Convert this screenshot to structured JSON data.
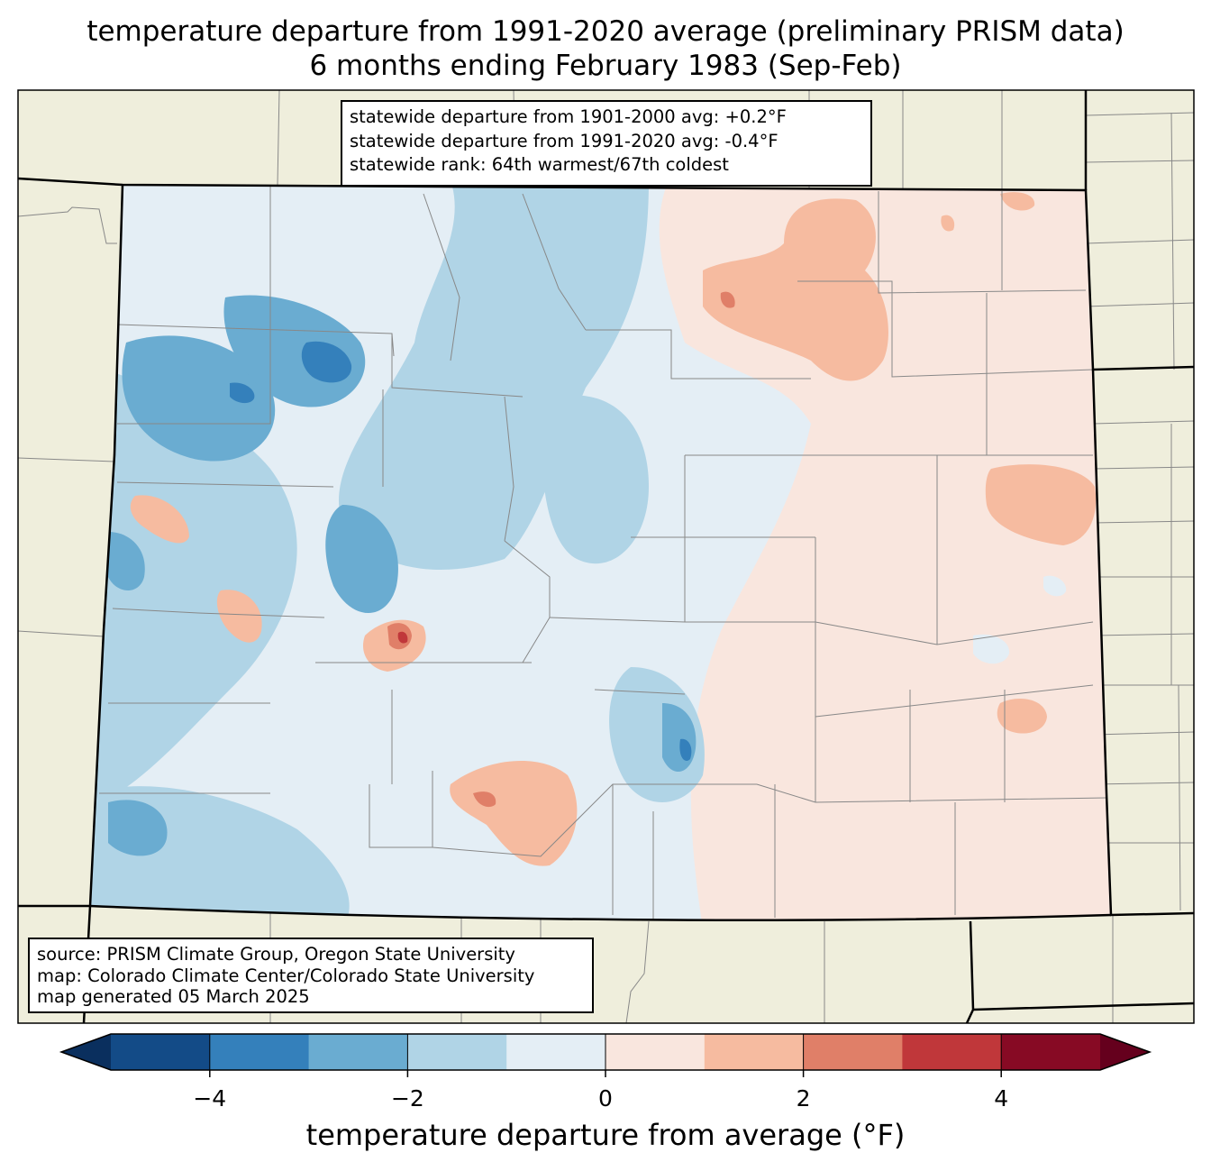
{
  "title": {
    "line1": "temperature departure from 1991-2020 average (preliminary PRISM data)",
    "line2": "6 months ending February 1983 (Sep-Feb)"
  },
  "stats": {
    "line1": "statewide departure from 1901-2000 avg: +0.2°F",
    "line2": "statewide departure from 1991-2020 avg: -0.4°F",
    "line3": "statewide rank: 64th warmest/67th coldest"
  },
  "source": {
    "line1": "source: PRISM Climate Group, Oregon State University",
    "line2": "map: Colorado Climate Center/Colorado State University",
    "line3": "map generated 05 March 2025"
  },
  "colorbar": {
    "label": "temperature departure from average (°F)",
    "ticks": [
      "−4",
      "−2",
      "0",
      "2",
      "4"
    ],
    "tick_values": [
      -4,
      -2,
      0,
      2,
      4
    ],
    "range": [
      -5,
      5
    ],
    "bins": [
      {
        "from": -5,
        "to": -4,
        "color": "#134b87"
      },
      {
        "from": -4,
        "to": -3,
        "color": "#3480bb"
      },
      {
        "from": -3,
        "to": -2,
        "color": "#6aacd1"
      },
      {
        "from": -2,
        "to": -1,
        "color": "#b0d4e6"
      },
      {
        "from": -1,
        "to": 0,
        "color": "#e4eef5"
      },
      {
        "from": 0,
        "to": 1,
        "color": "#f9e6de"
      },
      {
        "from": 1,
        "to": 2,
        "color": "#f6bba0"
      },
      {
        "from": 2,
        "to": 3,
        "color": "#e07f68"
      },
      {
        "from": 3,
        "to": 4,
        "color": "#c0373a"
      },
      {
        "from": 4,
        "to": 5,
        "color": "#870a24"
      }
    ],
    "under_color": "#0a2f5e",
    "over_color": "#65001d"
  },
  "colors": {
    "land_outside": "#efeedc",
    "state_border": "#000000",
    "county_lines": "#888888"
  }
}
